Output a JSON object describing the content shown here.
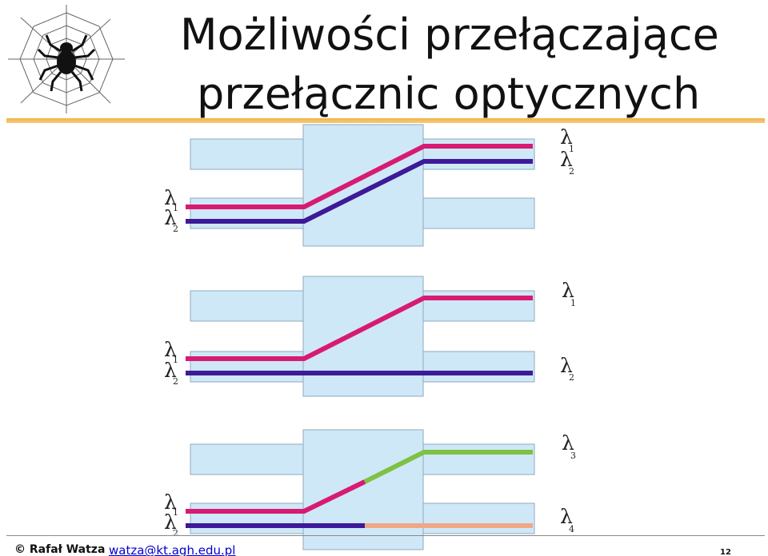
{
  "slide": {
    "title_line1": "Możliwości przełączające",
    "title_line2": "przełącznic optycznych"
  },
  "footer": {
    "author": "© Rafał Watza",
    "email": "watza@kt.agh.edu.pl",
    "page": "12"
  },
  "labels": {
    "lambda": "λ",
    "d1_in": [
      "1",
      "2"
    ],
    "d1_out": [
      "1",
      "2"
    ],
    "d2_in": [
      "1",
      "2"
    ],
    "d2_out_top": "1",
    "d2_out_bottom": "2",
    "d3_in": [
      "1",
      "2"
    ],
    "d3_out_top": "3",
    "d3_out_bottom": "4"
  },
  "colors": {
    "accent_bar": "#f3b34a",
    "box_fill": "#cfe8f8",
    "box_stroke": "#8fa9bd",
    "lambda1": "#d81b72",
    "lambda2": "#3d1a99",
    "lambda3": "#7dc242",
    "lambda4": "#f0a884"
  },
  "icons": {
    "logo": "spider-web-icon"
  }
}
